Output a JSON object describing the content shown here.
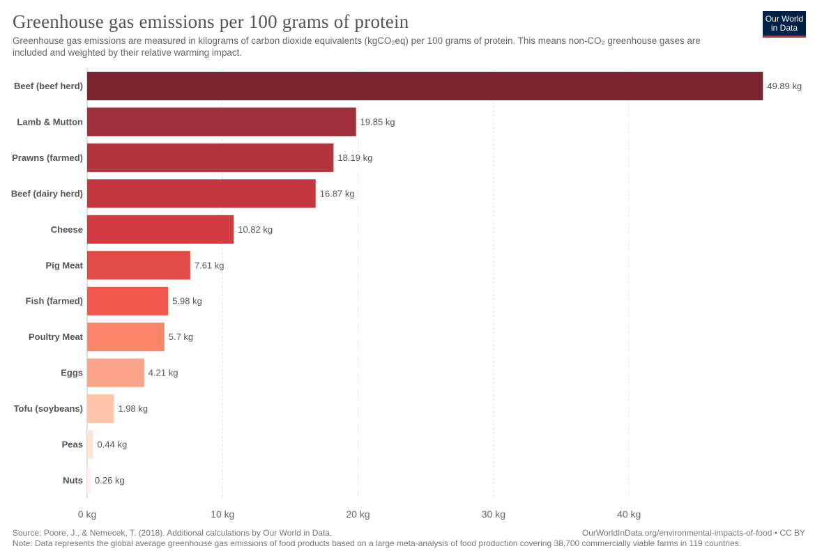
{
  "header": {
    "title": "Greenhouse gas emissions per 100 grams of protein",
    "subtitle": "Greenhouse gas emissions are measured in kilograms of carbon dioxide equivalents (kgCO₂eq) per 100 grams of protein. This means non-CO₂ greenhouse gases are included and weighted by their relative warming impact."
  },
  "logo": {
    "line1": "Our World",
    "line2": "in Data",
    "bg_color": "#002147",
    "accent_color": "#ce261e"
  },
  "chart_data": {
    "type": "bar",
    "orientation": "horizontal",
    "title": "Greenhouse gas emissions per 100 grams of protein",
    "unit": "kg",
    "categories": [
      "Beef (beef herd)",
      "Lamb & Mutton",
      "Prawns (farmed)",
      "Beef (dairy herd)",
      "Cheese",
      "Pig Meat",
      "Fish (farmed)",
      "Poultry Meat",
      "Eggs",
      "Tofu (soybeans)",
      "Peas",
      "Nuts"
    ],
    "values": [
      49.89,
      19.85,
      18.19,
      16.87,
      10.82,
      7.61,
      5.98,
      5.7,
      4.21,
      1.98,
      0.44,
      0.26
    ],
    "value_labels": [
      "49.89 kg",
      "19.85 kg",
      "18.19 kg",
      "16.87 kg",
      "10.82 kg",
      "7.61 kg",
      "5.98 kg",
      "5.7 kg",
      "4.21 kg",
      "1.98 kg",
      "0.44 kg",
      "0.26 kg"
    ],
    "colors": [
      "#7d2530",
      "#a0303a",
      "#b3353d",
      "#c2393f",
      "#d33c43",
      "#e24d45",
      "#ef5a4c",
      "#fa8468",
      "#fca488",
      "#fec5ab",
      "#ffe3d4",
      "#fff1ea"
    ],
    "xlim": [
      0,
      50
    ],
    "xticks": [
      0,
      10,
      20,
      30,
      40
    ],
    "xtick_labels": [
      "0 kg",
      "10 kg",
      "20 kg",
      "30 kg",
      "40 kg"
    ],
    "grid": true,
    "legend": "none"
  },
  "footer": {
    "source": "Source: Poore, J., & Nemecek, T. (2018). Additional calculations by Our World in Data.",
    "url": "OurWorldInData.org/environmental-impacts-of-food • CC BY",
    "note": "Note: Data represents the global average greenhouse gas emissions of food products based on a large meta-analysis of food production covering 38,700 commercially viable farms in 119 countries."
  }
}
